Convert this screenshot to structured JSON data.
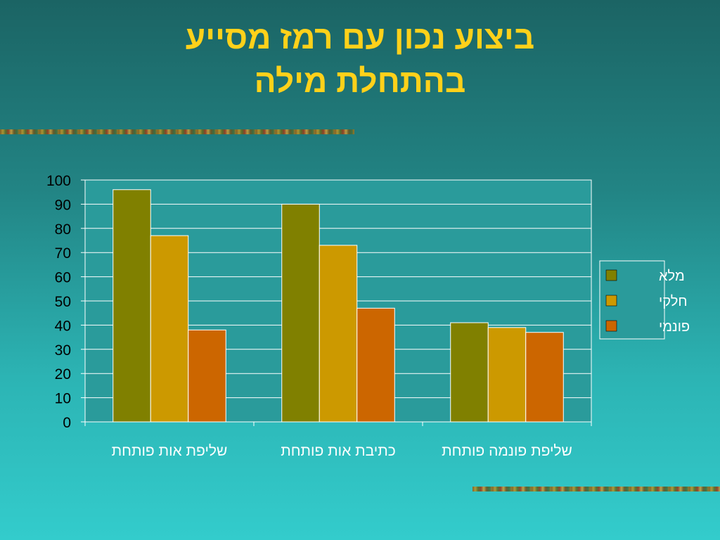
{
  "slide": {
    "title_line1": "ביצוע נכון עם רמז מסייע",
    "title_line2": "בהתחלת מילה"
  },
  "colors": {
    "title": "#ffd11a",
    "plot_background": "#2a9b9b",
    "series": [
      "#808000",
      "#cc9900",
      "#cc6600"
    ]
  },
  "chart_data": {
    "type": "bar",
    "categories": [
      "שליפת אות פותחת",
      "כתיבת אות פותחת",
      "שליפת פונמה פותחת"
    ],
    "series": [
      {
        "name": "מלא",
        "values": [
          96,
          90,
          41
        ]
      },
      {
        "name": "חלקי",
        "values": [
          77,
          73,
          39
        ]
      },
      {
        "name": "פונמי",
        "values": [
          38,
          47,
          37
        ]
      }
    ],
    "ylim": [
      0,
      100
    ],
    "yticks": [
      0,
      10,
      20,
      30,
      40,
      50,
      60,
      70,
      80,
      90,
      100
    ],
    "grid": true,
    "legend_position": "right"
  }
}
